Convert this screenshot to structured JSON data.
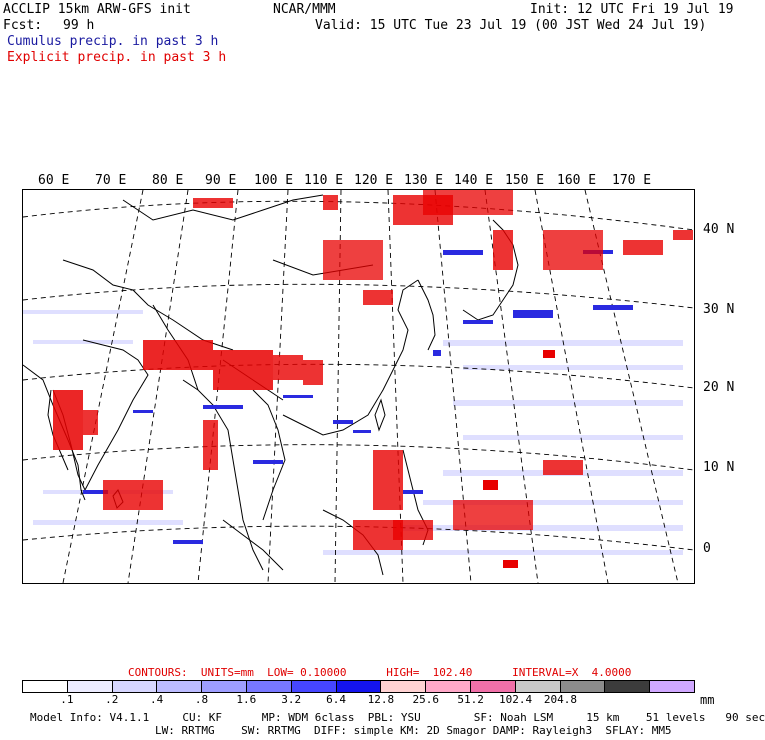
{
  "header": {
    "model_title": "ACCLIP 15km ARW-GFS init",
    "center": "NCAR/MMM",
    "init": "Init: 12 UTC Fri 19 Jul 19",
    "fcst_label": "Fcst:",
    "fcst_value": "99 h",
    "valid": "Valid: 15 UTC Tue 23 Jul 19 (00 JST Wed 24 Jul 19)",
    "legend_cumulus": "Cumulus precip. in past 3 h",
    "legend_explicit": "Explicit precip. in past 3 h"
  },
  "map": {
    "lon_labels": [
      "60 E",
      "70 E",
      "80 E",
      "90 E",
      "100 E",
      "110 E",
      "120 E",
      "130 E",
      "140 E",
      "150 E",
      "160 E",
      "170 E"
    ],
    "lat_labels": [
      "40 N",
      "30 N",
      "20 N",
      "10 N",
      "0"
    ],
    "colors": {
      "cumulus": "#2a2ae0",
      "explicit": "#e80000",
      "coast": "#000000",
      "grid": "#000000"
    }
  },
  "contours": {
    "text": "CONTOURS:  UNITS=mm  LOW= 0.10000      HIGH=  102.40      INTERVAL=X  4.0000"
  },
  "colorbar": {
    "colors": [
      "#ffffff",
      "#ececff",
      "#d6d6ff",
      "#bcbcff",
      "#9e9eff",
      "#7878ff",
      "#4646ff",
      "#1414ee",
      "#ffd2d2",
      "#ffa8c8",
      "#f070a8",
      "#c8c8c8",
      "#8c8c8c",
      "#3c3c3c",
      "#d0a8ff"
    ],
    "ticks": [
      ".1",
      ".2",
      ".4",
      ".8",
      "1.6",
      "3.2",
      "6.4",
      "12.8",
      "25.6",
      "51.2",
      "102.4",
      "204.8"
    ],
    "unit": "mm"
  },
  "footer": {
    "line1": "Model Info: V4.1.1     CU: KF      MP: WDM 6class  PBL: YSU        SF: Noah LSM     15 km    51 levels   90 sec",
    "line2": "LW: RRTMG    SW: RRTMG  DIFF: simple KM: 2D Smagor DAMP: Rayleigh3  SFLAY: MM5"
  }
}
